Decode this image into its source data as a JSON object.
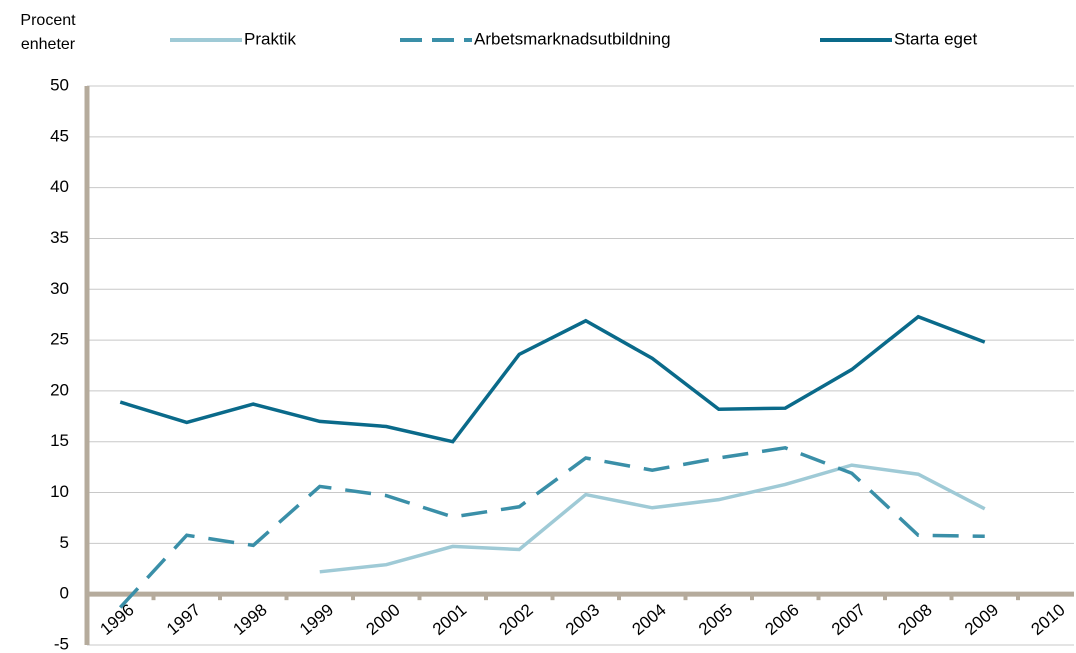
{
  "chart_data": {
    "type": "line",
    "y_label": [
      "Procent",
      "enheter"
    ],
    "categories": [
      "1996",
      "1997",
      "1998",
      "1999",
      "2000",
      "2001",
      "2002",
      "2003",
      "2004",
      "2005",
      "2006",
      "2007",
      "2008",
      "2009",
      "2010"
    ],
    "series": [
      {
        "name": "Praktik",
        "color": "#9fcad6",
        "style": "solid",
        "values": [
          null,
          null,
          null,
          2.2,
          2.9,
          4.7,
          4.4,
          9.8,
          8.5,
          9.3,
          10.8,
          12.7,
          11.8,
          8.4,
          null
        ]
      },
      {
        "name": "Arbetsmarknadsutbildning",
        "color": "#3a8fa8",
        "style": "dashed",
        "values": [
          -1.3,
          5.8,
          4.8,
          10.6,
          9.7,
          7.6,
          8.6,
          13.4,
          12.2,
          13.4,
          14.4,
          11.9,
          5.8,
          5.7,
          null
        ]
      },
      {
        "name": "Starta eget",
        "color": "#0a6a8a",
        "style": "solid",
        "values": [
          18.9,
          16.9,
          18.7,
          17.0,
          16.5,
          15.0,
          23.6,
          26.9,
          23.2,
          18.2,
          18.3,
          22.1,
          27.3,
          24.8,
          null
        ]
      }
    ],
    "ylim": [
      -5,
      50
    ],
    "yticks": [
      -5,
      0,
      5,
      10,
      15,
      20,
      25,
      30,
      35,
      40,
      45,
      50
    ],
    "grid": true
  }
}
